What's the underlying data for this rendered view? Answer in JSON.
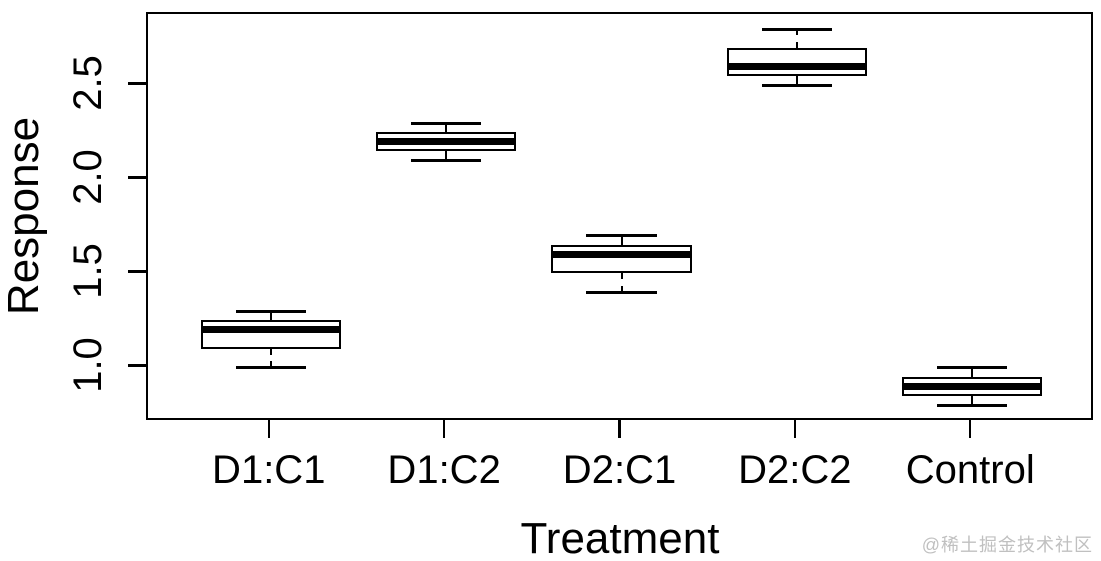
{
  "watermark": "@稀土掘金技术社区",
  "colors": {
    "line": "#000000",
    "fill": "#ffffff",
    "watermark": "#c0c0c0"
  },
  "chart_data": {
    "type": "boxplot",
    "title": "",
    "xlabel": "Treatment",
    "ylabel": "Response",
    "categories": [
      "D1:C1",
      "D1:C2",
      "D2:C1",
      "D2:C2",
      "Control"
    ],
    "series": [
      {
        "name": "D1:C1",
        "min": 1.0,
        "q1": 1.1,
        "median": 1.2,
        "q3": 1.25,
        "max": 1.3
      },
      {
        "name": "D1:C2",
        "min": 2.1,
        "q1": 2.15,
        "median": 2.2,
        "q3": 2.25,
        "max": 2.3
      },
      {
        "name": "D2:C1",
        "min": 1.4,
        "q1": 1.5,
        "median": 1.6,
        "q3": 1.65,
        "max": 1.7
      },
      {
        "name": "D2:C2",
        "min": 2.5,
        "q1": 2.55,
        "median": 2.6,
        "q3": 2.7,
        "max": 2.8
      },
      {
        "name": "Control",
        "min": 0.8,
        "q1": 0.85,
        "median": 0.9,
        "q3": 0.95,
        "max": 1.0
      }
    ],
    "ytick_labels": [
      "1.0",
      "1.5",
      "2.0",
      "2.5"
    ],
    "yticks": [
      1.0,
      1.5,
      2.0,
      2.5
    ],
    "ylim": [
      0.71,
      2.88
    ],
    "xlim": [
      0.3,
      5.7
    ],
    "box_width": 0.8,
    "cap_width": 0.4,
    "grid": false,
    "legend": "none",
    "whisker_style": "dashed"
  }
}
